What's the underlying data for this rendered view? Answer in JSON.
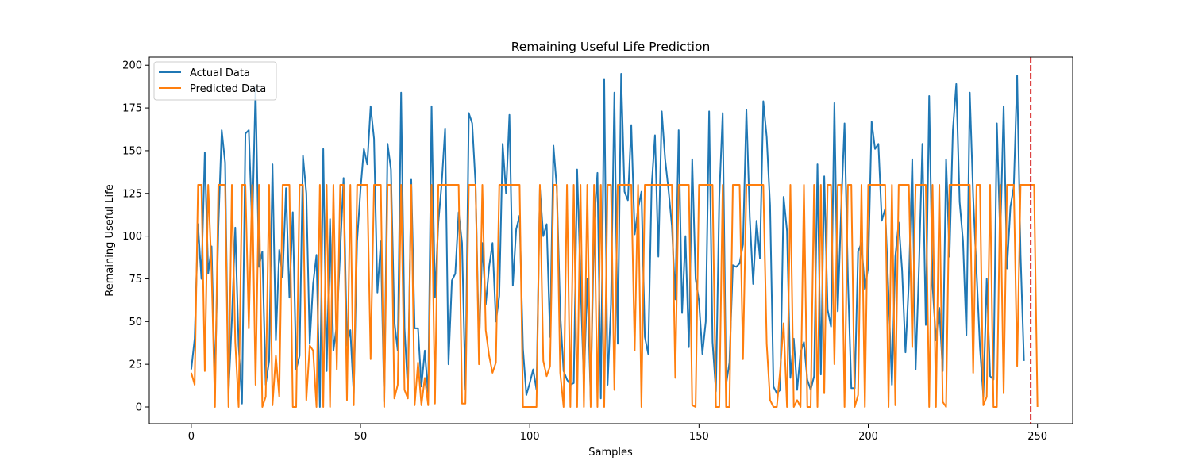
{
  "chart_data": {
    "type": "line",
    "title": "Remaining Useful Life Prediction",
    "xlabel": "Samples",
    "ylabel": "Remaining Useful Life",
    "xlim": [
      -12.4,
      260.4
    ],
    "ylim": [
      -9.75,
      204.75
    ],
    "xticks": [
      0,
      50,
      100,
      150,
      200,
      250
    ],
    "yticks": [
      0,
      25,
      50,
      75,
      100,
      125,
      150,
      175,
      200
    ],
    "grid": false,
    "legend_position": "upper-left",
    "vline": {
      "x": 248,
      "color": "#d62728",
      "style": "dashed"
    },
    "series": [
      {
        "name": "Actual Data",
        "color": "#1f77b4",
        "x_start": 0,
        "values": [
          22,
          40,
          107,
          75,
          149,
          78,
          94,
          13,
          105,
          162,
          143,
          8,
          51,
          105,
          36,
          2,
          160,
          162,
          104,
          187,
          82,
          91,
          13,
          27,
          142,
          39,
          92,
          76,
          128,
          64,
          114,
          22,
          30,
          147,
          125,
          37,
          72,
          89,
          0,
          151,
          21,
          110,
          33,
          48,
          91,
          134,
          36,
          45,
          7,
          97,
          127,
          151,
          142,
          176,
          157,
          67,
          97,
          3,
          154,
          139,
          50,
          33,
          184,
          46,
          10,
          133,
          46,
          46,
          12,
          33,
          7,
          176,
          64,
          108,
          131,
          163,
          25,
          74,
          78,
          114,
          96,
          10,
          172,
          166,
          130,
          34,
          96,
          60,
          82,
          96,
          50,
          65,
          154,
          125,
          171,
          71,
          104,
          112,
          34,
          7,
          14,
          22,
          10,
          128,
          100,
          107,
          41,
          153,
          128,
          55,
          21,
          16,
          13,
          14,
          139,
          74,
          13,
          75,
          4,
          106,
          137,
          5,
          192,
          13,
          60,
          184,
          37,
          195,
          126,
          121,
          165,
          101,
          116,
          126,
          41,
          31,
          129,
          159,
          88,
          173,
          145,
          127,
          106,
          63,
          162,
          55,
          100,
          35,
          145,
          75,
          62,
          31,
          50,
          173,
          38,
          9,
          123,
          172,
          13,
          26,
          83,
          82,
          84,
          95,
          174,
          111,
          72,
          109,
          87,
          179,
          158,
          118,
          12,
          8,
          10,
          123,
          103,
          17,
          40,
          10,
          32,
          38,
          16,
          10,
          18,
          142,
          19,
          135,
          57,
          47,
          178,
          56,
          116,
          166,
          75,
          11,
          11,
          91,
          96,
          69,
          82,
          167,
          151,
          154,
          109,
          116,
          66,
          13,
          88,
          108,
          80,
          32,
          73,
          145,
          22,
          83,
          154,
          48,
          182,
          71,
          39,
          58,
          21,
          145,
          88,
          162,
          189,
          120,
          97,
          42,
          184,
          123,
          79,
          35,
          6,
          75,
          18,
          16,
          166,
          98,
          176,
          81,
          117,
          129,
          194,
          89,
          27
        ]
      },
      {
        "name": "Predicted Data",
        "color": "#ff7f0e",
        "x_start": 0,
        "values": [
          20,
          13,
          130,
          130,
          21,
          130,
          80,
          0,
          130,
          130,
          130,
          0,
          130,
          38,
          0,
          130,
          130,
          46,
          130,
          13,
          130,
          0,
          6,
          130,
          1,
          30,
          6,
          130,
          130,
          130,
          0,
          0,
          130,
          130,
          4,
          36,
          33,
          0,
          130,
          0,
          130,
          0,
          130,
          22,
          130,
          130,
          4,
          130,
          1,
          130,
          130,
          130,
          130,
          28,
          130,
          130,
          130,
          0,
          130,
          130,
          5,
          13,
          130,
          10,
          5,
          130,
          1,
          26,
          1,
          17,
          1,
          130,
          2,
          130,
          130,
          130,
          130,
          130,
          130,
          130,
          2,
          2,
          130,
          130,
          130,
          25,
          130,
          45,
          30,
          20,
          26,
          130,
          130,
          130,
          130,
          130,
          130,
          130,
          0,
          0,
          0,
          0,
          0,
          130,
          27,
          18,
          24,
          130,
          130,
          20,
          0,
          130,
          0,
          130,
          0,
          130,
          0,
          130,
          0,
          130,
          0,
          130,
          0,
          130,
          130,
          10,
          130,
          130,
          130,
          130,
          130,
          33,
          130,
          0,
          130,
          130,
          130,
          130,
          130,
          130,
          130,
          130,
          130,
          17,
          130,
          130,
          130,
          130,
          1,
          0,
          130,
          130,
          130,
          130,
          130,
          0,
          0,
          130,
          0,
          0,
          130,
          130,
          130,
          28,
          130,
          130,
          130,
          130,
          130,
          130,
          37,
          4,
          0,
          0,
          22,
          49,
          0,
          130,
          0,
          4,
          0,
          130,
          0,
          0,
          130,
          0,
          130,
          8,
          130,
          130,
          25,
          130,
          130,
          0,
          130,
          130,
          0,
          7,
          130,
          0,
          130,
          130,
          130,
          130,
          130,
          130,
          0,
          130,
          1,
          130,
          130,
          130,
          130,
          35,
          130,
          130,
          130,
          130,
          0,
          130,
          0,
          130,
          3,
          0,
          130,
          130,
          130,
          130,
          130,
          130,
          130,
          20,
          130,
          130,
          1,
          6,
          130,
          0,
          0,
          130,
          8,
          130,
          130,
          130,
          24,
          130,
          130,
          130,
          130,
          130,
          0
        ]
      }
    ]
  }
}
